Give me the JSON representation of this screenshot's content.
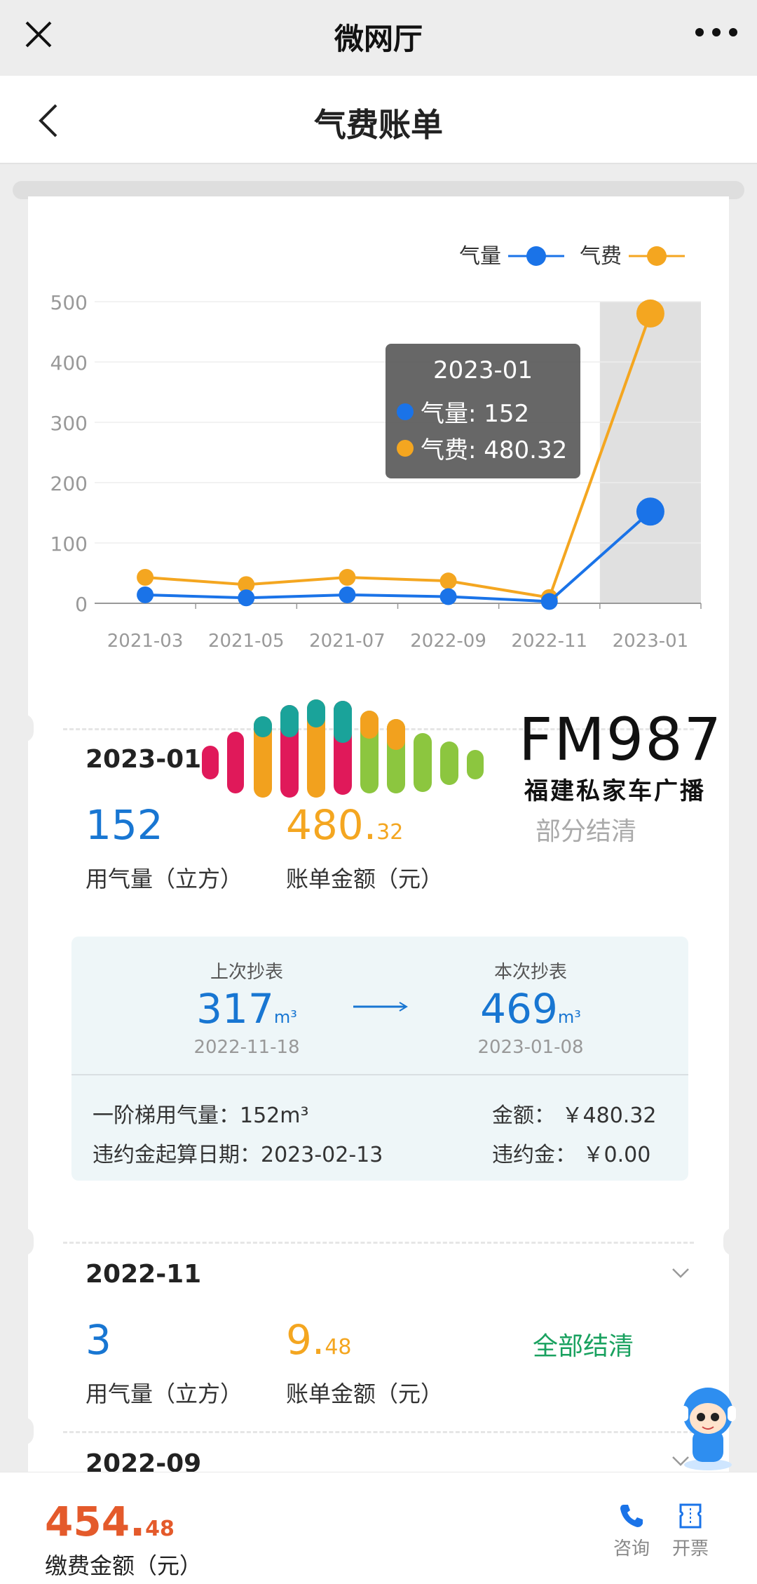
{
  "window": {
    "title": "微网厅"
  },
  "nav": {
    "title": "气费账单"
  },
  "legend": {
    "series1": "气量",
    "series2": "气费"
  },
  "colors": {
    "gas": "#1a73e8",
    "fee": "#f4a620",
    "green": "#19a15f",
    "orange": "#e45a2b",
    "blue": "#1876d2"
  },
  "chart_data": {
    "type": "line",
    "categories": [
      "2021-03",
      "2021-05",
      "2021-07",
      "2022-09",
      "2022-11",
      "2023-01"
    ],
    "yticks": [
      "500",
      "400",
      "300",
      "200",
      "100",
      "0"
    ],
    "ylim": [
      0,
      500
    ],
    "series": [
      {
        "name": "气量",
        "values": [
          14,
          9,
          14,
          11,
          3,
          152
        ],
        "color": "#1a73e8"
      },
      {
        "name": "气费",
        "values": [
          43,
          31,
          43,
          37,
          9.48,
          480.32
        ],
        "color": "#f4a620"
      }
    ],
    "highlight_index": 5,
    "tooltip": {
      "date": "2023-01",
      "line1": "气量: 152",
      "line2": "气费: 480.32"
    }
  },
  "bill1": {
    "month": "2023-01",
    "gas": "152",
    "gas_label": "用气量（立方）",
    "amount_int": "480.",
    "amount_dec": "32",
    "amount_label": "账单金额（元）",
    "status": "部分结清",
    "meter": {
      "prev_label": "上次抄表",
      "prev_value": "317",
      "prev_unit": "m³",
      "prev_date": "2022-11-18",
      "curr_label": "本次抄表",
      "curr_value": "469",
      "curr_unit": "m³",
      "curr_date": "2023-01-08",
      "tier": "一阶梯用气量：152m³",
      "amount": "金额：  ￥480.32",
      "penalty_date": "违约金起算日期：2023-02-13",
      "penalty": "违约金：  ￥0.00"
    }
  },
  "bill2": {
    "month": "2022-11",
    "gas": "3",
    "gas_label": "用气量（立方）",
    "amount_int": "9.",
    "amount_dec": "48",
    "amount_label": "账单金额（元）",
    "status": "全部结清"
  },
  "bill3": {
    "month": "2022-09"
  },
  "bottom": {
    "amount_int": "454.",
    "amount_dec": "48",
    "amount_label": "缴费金额（元）",
    "consult": "咨询",
    "invoice": "开票"
  },
  "watermark": {
    "brand": "FM987",
    "sub": "福建私家车广播"
  }
}
